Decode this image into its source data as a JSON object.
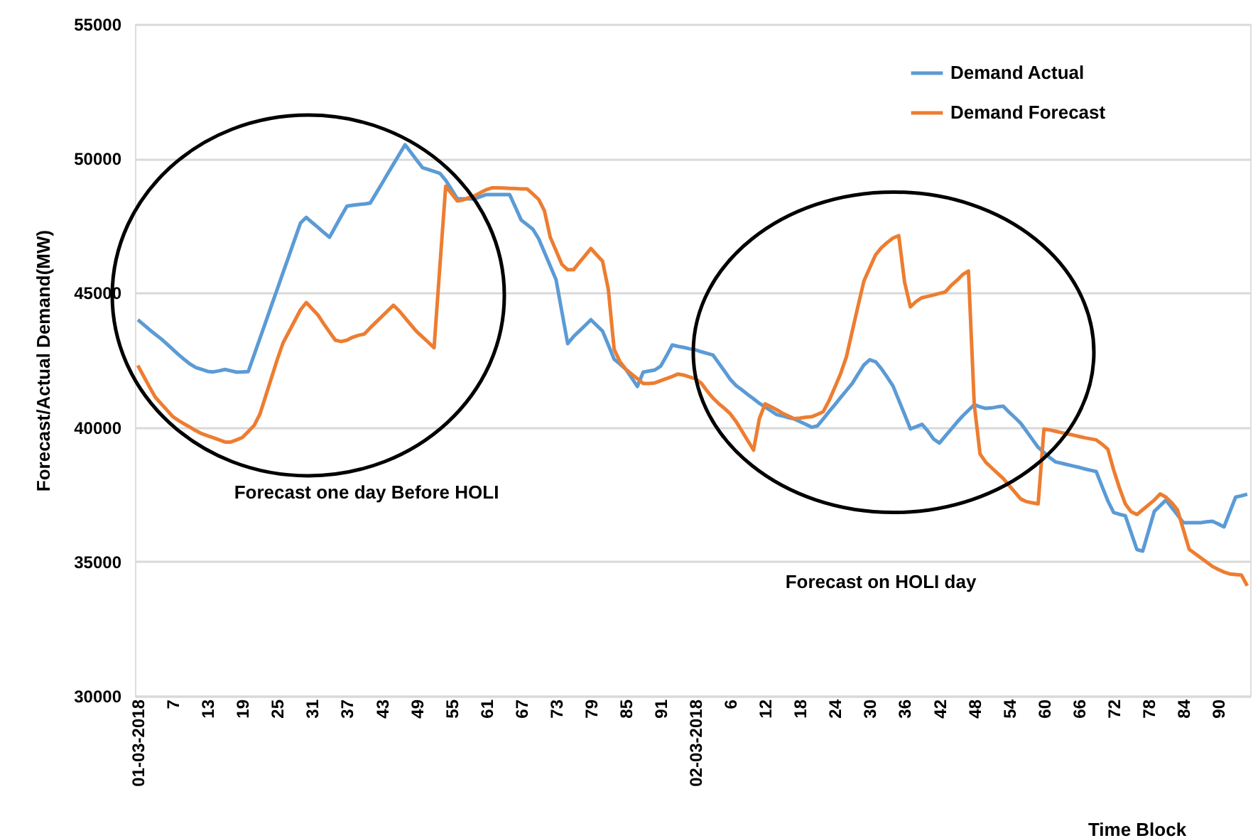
{
  "chart_data": {
    "type": "line",
    "ylabel": "Forecast/Actual Demand(MW)",
    "xlabel": "Time Block",
    "annotations": [
      "Forecast one day Before HOLI",
      "Forecast on HOLI day"
    ],
    "categories": [
      "01-03-2018",
      null,
      null,
      null,
      null,
      null,
      "7",
      null,
      null,
      null,
      null,
      null,
      "13",
      null,
      null,
      null,
      null,
      null,
      "19",
      null,
      null,
      null,
      null,
      null,
      "25",
      null,
      null,
      null,
      null,
      null,
      "31",
      null,
      null,
      null,
      null,
      null,
      "37",
      null,
      null,
      null,
      null,
      null,
      "43",
      null,
      null,
      null,
      null,
      null,
      "49",
      null,
      null,
      null,
      null,
      null,
      "55",
      null,
      null,
      null,
      null,
      null,
      "61",
      null,
      null,
      null,
      null,
      null,
      "67",
      null,
      null,
      null,
      null,
      null,
      "73",
      null,
      null,
      null,
      null,
      null,
      "79",
      null,
      null,
      null,
      null,
      null,
      "85",
      null,
      null,
      null,
      null,
      null,
      "91",
      null,
      null,
      null,
      null,
      null,
      "02-03-2018",
      null,
      null,
      null,
      null,
      null,
      "6",
      null,
      null,
      null,
      null,
      null,
      "12",
      null,
      null,
      null,
      null,
      null,
      "18",
      null,
      null,
      null,
      null,
      null,
      "24",
      null,
      null,
      null,
      null,
      null,
      "30",
      null,
      null,
      null,
      null,
      null,
      "36",
      null,
      null,
      null,
      null,
      null,
      "42",
      null,
      null,
      null,
      null,
      null,
      "48",
      null,
      null,
      null,
      null,
      null,
      "54",
      null,
      null,
      null,
      null,
      null,
      "60",
      null,
      null,
      null,
      null,
      null,
      "66",
      null,
      null,
      null,
      null,
      null,
      "72",
      null,
      null,
      null,
      null,
      null,
      "78",
      null,
      null,
      null,
      null,
      null,
      "84",
      null,
      null,
      null,
      null,
      null,
      "90",
      null,
      null,
      null,
      null,
      null
    ],
    "series": [
      {
        "name": "Demand Actual",
        "color": "#5b9bd5",
        "values": [
          44000,
          43820,
          43630,
          43460,
          43290,
          43100,
          42900,
          42700,
          42520,
          42350,
          42220,
          42150,
          42080,
          42060,
          42100,
          42150,
          42100,
          42050,
          42060,
          42070,
          42680,
          43300,
          43910,
          44530,
          45140,
          45760,
          46370,
          46990,
          47600,
          47810,
          47620,
          47440,
          47250,
          47070,
          47460,
          47850,
          48230,
          48260,
          48290,
          48310,
          48340,
          48700,
          49060,
          49430,
          49790,
          50150,
          50510,
          50230,
          49940,
          49660,
          49590,
          49520,
          49450,
          49190,
          48850,
          48500,
          48500,
          48500,
          48500,
          48580,
          48660,
          48660,
          48660,
          48660,
          48660,
          48190,
          47710,
          47540,
          47370,
          47020,
          46510,
          46000,
          45490,
          44300,
          43110,
          43370,
          43580,
          43790,
          44000,
          43790,
          43580,
          43060,
          42530,
          42350,
          42160,
          41840,
          41520,
          42050,
          42090,
          42130,
          42270,
          42650,
          43060,
          43010,
          42970,
          42920,
          42880,
          42810,
          42750,
          42690,
          42390,
          42090,
          41780,
          41550,
          41390,
          41220,
          41060,
          40890,
          40750,
          40610,
          40470,
          40420,
          40360,
          40310,
          40210,
          40110,
          40000,
          40050,
          40310,
          40580,
          40840,
          41110,
          41370,
          41630,
          41980,
          42320,
          42510,
          42440,
          42180,
          41870,
          41540,
          41010,
          40480,
          39940,
          40020,
          40110,
          39860,
          39560,
          39410,
          39670,
          39920,
          40180,
          40420,
          40630,
          40840,
          40760,
          40700,
          40720,
          40760,
          40780,
          40560,
          40360,
          40150,
          39850,
          39550,
          39250,
          39060,
          38870,
          38710,
          38660,
          38610,
          38560,
          38510,
          38450,
          38400,
          38350,
          37800,
          37260,
          36830,
          36760,
          36710,
          36080,
          35450,
          35390,
          36130,
          36870,
          37080,
          37290,
          37010,
          36730,
          36450,
          36450,
          36450,
          36450,
          36480,
          36500,
          36400,
          36290,
          36850,
          37400,
          37450,
          37510
        ]
      },
      {
        "name": "Demand Forecast",
        "color": "#ed7d31",
        "values": [
          42300,
          41900,
          41500,
          41120,
          40880,
          40640,
          40400,
          40250,
          40120,
          40000,
          39870,
          39760,
          39680,
          39610,
          39530,
          39450,
          39450,
          39530,
          39620,
          39840,
          40060,
          40480,
          41160,
          41840,
          42520,
          43140,
          43550,
          43960,
          44370,
          44640,
          44410,
          44180,
          43850,
          43540,
          43240,
          43190,
          43240,
          43350,
          43420,
          43470,
          43700,
          43910,
          44120,
          44330,
          44540,
          44330,
          44070,
          43810,
          43560,
          43360,
          43160,
          42960,
          46000,
          48970,
          48700,
          48420,
          48460,
          48540,
          48610,
          48730,
          48840,
          48910,
          48910,
          48900,
          48890,
          48880,
          48870,
          48870,
          48680,
          48480,
          48050,
          47070,
          46570,
          46060,
          45860,
          45860,
          46130,
          46390,
          46650,
          46410,
          46180,
          45130,
          42900,
          42440,
          42160,
          41980,
          41810,
          41630,
          41630,
          41650,
          41730,
          41810,
          41890,
          41980,
          41940,
          41870,
          41800,
          41640,
          41350,
          41090,
          40880,
          40700,
          40500,
          40210,
          39860,
          39500,
          39150,
          40320,
          40870,
          40760,
          40650,
          40520,
          40420,
          40320,
          40340,
          40370,
          40390,
          40480,
          40580,
          40990,
          41490,
          42000,
          42630,
          43580,
          44520,
          45440,
          45930,
          46410,
          46680,
          46870,
          47040,
          47130,
          45400,
          44480,
          44680,
          44820,
          44870,
          44920,
          44980,
          45030,
          45270,
          45460,
          45680,
          45810,
          40840,
          39000,
          38690,
          38490,
          38290,
          38090,
          37830,
          37580,
          37330,
          37230,
          37190,
          37150,
          39930,
          39900,
          39850,
          39800,
          39750,
          39710,
          39660,
          39610,
          39570,
          39530,
          39370,
          39180,
          38410,
          37740,
          37150,
          36860,
          36750,
          36930,
          37110,
          37290,
          37520,
          37400,
          37190,
          36920,
          36190,
          35460,
          35300,
          35140,
          34980,
          34820,
          34710,
          34610,
          34540,
          34520,
          34500,
          34100
        ]
      }
    ],
    "ylim": [
      30000,
      55000
    ],
    "yticks": [
      30000,
      35000,
      40000,
      45000,
      50000,
      55000
    ],
    "grid": "y",
    "legend": "top right"
  }
}
